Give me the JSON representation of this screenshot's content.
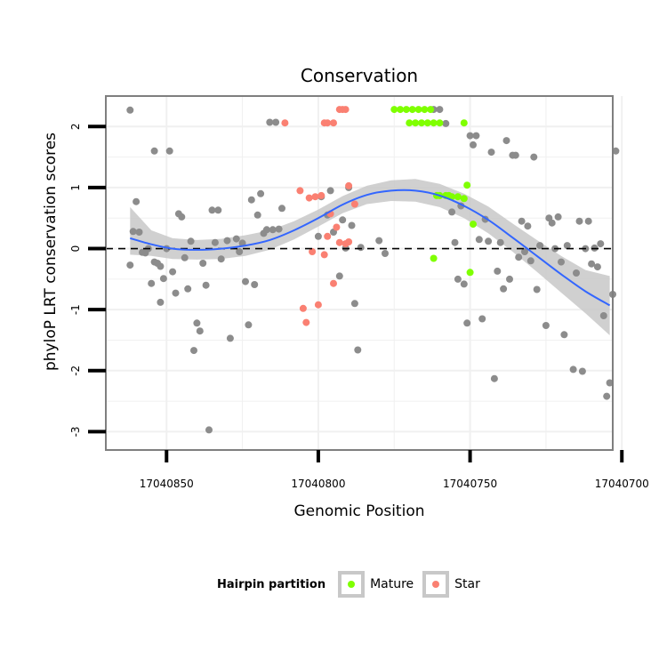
{
  "chart_data": {
    "type": "scatter",
    "title": "Conservation",
    "xlabel": "Genomic Position",
    "ylabel": "phyloP LRT conservation scores",
    "x_reversed": true,
    "xlim": [
      17040870,
      17040703
    ],
    "ylim": [
      -3.3,
      2.5
    ],
    "x_ticks": [
      17040850,
      17040800,
      17040750,
      17040700
    ],
    "x_tick_labels": [
      "17040850",
      "17040800",
      "17040750",
      "17040700"
    ],
    "y_ticks": [
      -3,
      -2,
      -1,
      0,
      1,
      2
    ],
    "y_tick_labels": [
      "-3",
      "-2",
      "-1",
      "0",
      "1",
      "2"
    ],
    "hline": 0,
    "legend": {
      "title": "Hairpin partition",
      "position": "bottom",
      "entries": [
        {
          "name": "Mature",
          "color": "#7fff00"
        },
        {
          "name": "Star",
          "color": "#fa8072"
        }
      ]
    },
    "colors": {
      "other": "#8c8c8c",
      "Mature": "#7fff00",
      "Star": "#fa8072",
      "smooth_line": "#3366ff",
      "ribbon": "#c8c8c8",
      "grid": "#f0f0f0",
      "panel_border": "#7f7f7f"
    },
    "smooth": {
      "x": [
        17040862,
        17040855,
        17040848,
        17040840,
        17040832,
        17040824,
        17040816,
        17040808,
        17040800,
        17040792,
        17040784,
        17040776,
        17040768,
        17040760,
        17040752,
        17040744,
        17040736,
        17040728,
        17040720,
        17040712,
        17040704
      ],
      "y": [
        0.17,
        0.07,
        0.0,
        -0.02,
        0.0,
        0.05,
        0.14,
        0.3,
        0.5,
        0.72,
        0.88,
        0.95,
        0.95,
        0.87,
        0.7,
        0.47,
        0.18,
        -0.12,
        -0.42,
        -0.7,
        -0.93
      ],
      "lower": [
        -0.1,
        -0.12,
        -0.17,
        -0.18,
        -0.17,
        -0.12,
        -0.02,
        0.15,
        0.36,
        0.58,
        0.73,
        0.78,
        0.77,
        0.68,
        0.5,
        0.25,
        -0.05,
        -0.38,
        -0.72,
        -1.06,
        -1.42
      ],
      "upper": [
        0.68,
        0.3,
        0.17,
        0.14,
        0.16,
        0.22,
        0.3,
        0.45,
        0.64,
        0.86,
        1.03,
        1.12,
        1.14,
        1.06,
        0.9,
        0.69,
        0.41,
        0.14,
        -0.12,
        -0.35,
        -0.45
      ]
    },
    "series": [
      {
        "name": "Other",
        "points": [
          [
            17040862,
            2.27
          ],
          [
            17040862,
            -0.27
          ],
          [
            17040861,
            0.28
          ],
          [
            17040860,
            0.77
          ],
          [
            17040859,
            0.27
          ],
          [
            17040858,
            -0.06
          ],
          [
            17040857,
            -0.07
          ],
          [
            17040856,
            0.0
          ],
          [
            17040855,
            -0.57
          ],
          [
            17040854,
            1.6
          ],
          [
            17040854,
            -0.22
          ],
          [
            17040853,
            -0.24
          ],
          [
            17040852,
            -0.88
          ],
          [
            17040852,
            -0.29
          ],
          [
            17040851,
            -0.49
          ],
          [
            17040850,
            0.0
          ],
          [
            17040849,
            1.6
          ],
          [
            17040848,
            -0.38
          ],
          [
            17040847,
            -0.73
          ],
          [
            17040846,
            0.57
          ],
          [
            17040845,
            0.52
          ],
          [
            17040844,
            -0.15
          ],
          [
            17040843,
            -0.66
          ],
          [
            17040842,
            0.12
          ],
          [
            17040841,
            -1.67
          ],
          [
            17040840,
            -1.22
          ],
          [
            17040839,
            -1.35
          ],
          [
            17040838,
            -0.24
          ],
          [
            17040837,
            -0.6
          ],
          [
            17040836,
            -2.97
          ],
          [
            17040835,
            0.63
          ],
          [
            17040834,
            0.1
          ],
          [
            17040833,
            0.63
          ],
          [
            17040832,
            -0.17
          ],
          [
            17040830,
            0.13
          ],
          [
            17040829,
            -1.47
          ],
          [
            17040827,
            0.16
          ],
          [
            17040826,
            -0.05
          ],
          [
            17040825,
            0.09
          ],
          [
            17040824,
            -0.54
          ],
          [
            17040823,
            -1.25
          ],
          [
            17040822,
            0.8
          ],
          [
            17040820,
            0.55
          ],
          [
            17040821,
            -0.59
          ],
          [
            17040819,
            0.9
          ],
          [
            17040818,
            0.25
          ],
          [
            17040817,
            0.31
          ],
          [
            17040816,
            2.07
          ],
          [
            17040815,
            0.31
          ],
          [
            17040814,
            2.07
          ],
          [
            17040813,
            0.32
          ],
          [
            17040812,
            0.66
          ],
          [
            17040800,
            0.2
          ],
          [
            17040799,
            0.85
          ],
          [
            17040797,
            0.55
          ],
          [
            17040796,
            0.95
          ],
          [
            17040795,
            0.27
          ],
          [
            17040793,
            -0.45
          ],
          [
            17040792,
            0.47
          ],
          [
            17040791,
            0.01
          ],
          [
            17040790,
            1.0
          ],
          [
            17040789,
            0.38
          ],
          [
            17040788,
            -0.9
          ],
          [
            17040787,
            -1.66
          ],
          [
            17040786,
            0.02
          ],
          [
            17040780,
            0.13
          ],
          [
            17040778,
            -0.08
          ],
          [
            17040762,
            2.28
          ],
          [
            17040760,
            2.28
          ],
          [
            17040758,
            2.05
          ],
          [
            17040756,
            0.6
          ],
          [
            17040755,
            0.1
          ],
          [
            17040754,
            -0.5
          ],
          [
            17040753,
            0.7
          ],
          [
            17040752,
            -0.58
          ],
          [
            17040751,
            -1.22
          ],
          [
            17040750,
            1.85
          ],
          [
            17040749,
            1.7
          ],
          [
            17040748,
            1.85
          ],
          [
            17040747,
            0.15
          ],
          [
            17040746,
            -1.15
          ],
          [
            17040745,
            0.48
          ],
          [
            17040744,
            0.12
          ],
          [
            17040743,
            1.58
          ],
          [
            17040742,
            -2.13
          ],
          [
            17040741,
            -0.37
          ],
          [
            17040740,
            0.1
          ],
          [
            17040739,
            -0.66
          ],
          [
            17040738,
            1.77
          ],
          [
            17040737,
            -0.5
          ],
          [
            17040736,
            1.53
          ],
          [
            17040735,
            1.53
          ],
          [
            17040734,
            -0.14
          ],
          [
            17040733,
            0.45
          ],
          [
            17040732,
            -0.05
          ],
          [
            17040731,
            0.37
          ],
          [
            17040730,
            -0.2
          ],
          [
            17040729,
            1.5
          ],
          [
            17040728,
            -0.67
          ],
          [
            17040727,
            0.05
          ],
          [
            17040725,
            -1.26
          ],
          [
            17040724,
            0.5
          ],
          [
            17040723,
            0.42
          ],
          [
            17040722,
            0.0
          ],
          [
            17040721,
            0.52
          ],
          [
            17040720,
            -0.22
          ],
          [
            17040719,
            -1.41
          ],
          [
            17040718,
            0.05
          ],
          [
            17040716,
            -1.98
          ],
          [
            17040715,
            -0.4
          ],
          [
            17040714,
            0.45
          ],
          [
            17040713,
            -2.01
          ],
          [
            17040712,
            0.0
          ],
          [
            17040711,
            0.45
          ],
          [
            17040710,
            -0.25
          ],
          [
            17040709,
            0.01
          ],
          [
            17040708,
            -0.3
          ],
          [
            17040707,
            0.08
          ],
          [
            17040706,
            -1.1
          ],
          [
            17040705,
            -2.42
          ],
          [
            17040704,
            -2.2
          ],
          [
            17040703,
            -0.75
          ],
          [
            17040702,
            1.6
          ]
        ]
      },
      {
        "name": "Mature",
        "points": [
          [
            17040775,
            2.28
          ],
          [
            17040773,
            2.28
          ],
          [
            17040771,
            2.28
          ],
          [
            17040769,
            2.28
          ],
          [
            17040767,
            2.28
          ],
          [
            17040765,
            2.28
          ],
          [
            17040763,
            2.28
          ],
          [
            17040770,
            2.06
          ],
          [
            17040768,
            2.06
          ],
          [
            17040766,
            2.06
          ],
          [
            17040764,
            2.06
          ],
          [
            17040762,
            2.06
          ],
          [
            17040760,
            2.06
          ],
          [
            17040752,
            2.06
          ],
          [
            17040762,
            -0.16
          ],
          [
            17040761,
            0.87
          ],
          [
            17040760,
            0.87
          ],
          [
            17040758,
            0.87
          ],
          [
            17040757,
            0.87
          ],
          [
            17040756,
            0.85
          ],
          [
            17040754,
            0.85
          ],
          [
            17040752,
            0.82
          ],
          [
            17040751,
            1.04
          ],
          [
            17040749,
            0.4
          ],
          [
            17040750,
            -0.39
          ]
        ]
      },
      {
        "name": "Star",
        "points": [
          [
            17040811,
            2.06
          ],
          [
            17040798,
            2.06
          ],
          [
            17040797,
            2.06
          ],
          [
            17040795,
            2.06
          ],
          [
            17040793,
            2.28
          ],
          [
            17040792,
            2.28
          ],
          [
            17040791,
            2.28
          ],
          [
            17040806,
            0.95
          ],
          [
            17040803,
            0.83
          ],
          [
            17040801,
            0.85
          ],
          [
            17040799,
            0.87
          ],
          [
            17040796,
            0.57
          ],
          [
            17040794,
            0.35
          ],
          [
            17040790,
            1.03
          ],
          [
            17040788,
            0.73
          ],
          [
            17040802,
            -0.05
          ],
          [
            17040797,
            0.2
          ],
          [
            17040798,
            -0.1
          ],
          [
            17040793,
            0.1
          ],
          [
            17040791,
            0.08
          ],
          [
            17040790,
            0.11
          ],
          [
            17040805,
            -0.98
          ],
          [
            17040804,
            -1.21
          ],
          [
            17040800,
            -0.92
          ],
          [
            17040795,
            -0.57
          ]
        ]
      }
    ]
  }
}
